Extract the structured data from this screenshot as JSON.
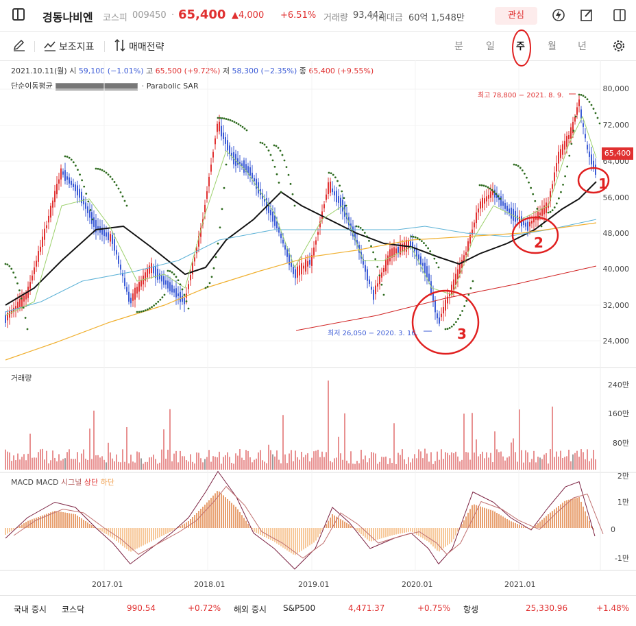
{
  "header": {
    "name": "경동나비엔",
    "market": "코스피",
    "code": "009450",
    "dot": "·",
    "price": "65,400",
    "change": "▲4,000",
    "change_pct": "+6.51%",
    "volume_label": "거래량",
    "volume": "93,442",
    "amount_label": "거래대금",
    "amount": "60억 1,548만",
    "fav_label": "관심"
  },
  "toolbar": {
    "indicator_label": "보조지표",
    "strategy_label": "매매전략",
    "periods": [
      "분",
      "일",
      "주",
      "월",
      "년"
    ],
    "selected_period": "주"
  },
  "info": {
    "date": "2021.10.11(월)",
    "open_label": "시",
    "open": "59,100 (−1.01%)",
    "high_label": "고",
    "high": "65,500 (+9.72%)",
    "low_label": "저",
    "low": "58,300 (−2.35%)",
    "close_label": "종",
    "close": "65,400 (+9.55%)",
    "ma_label": "단순이동평균",
    "sar_label": "· Parabolic SAR"
  },
  "price_axis": [
    "80,000",
    "72,000",
    "64,000",
    "56,000",
    "48,000",
    "40,000",
    "32,000",
    "24,000"
  ],
  "current_price_tag": "65,400",
  "annotations": {
    "high": "최고 78,800 − 2021. 8. 9.",
    "low": "최저 26,050 − 2020. 3. 16.",
    "marks": [
      "1",
      "2",
      "3"
    ]
  },
  "volume_pane": {
    "label": "거래량",
    "axis": [
      "240만",
      "160만",
      "80만"
    ]
  },
  "macd_pane": {
    "label_parts": [
      "MACD MACD",
      "시그널",
      "상단",
      "하단"
    ],
    "axis": [
      "2만",
      "1만",
      "0",
      "-1만"
    ]
  },
  "x_axis": [
    "2017.01",
    "2018.01",
    "2019.01",
    "2020.01",
    "2021.01"
  ],
  "footer": {
    "domestic_label": "국내 증시",
    "kosdaq_label": "코스닥",
    "kosdaq_value": "990.54",
    "kosdaq_change": "+0.72%",
    "overseas_label": "해외 증시",
    "sp_label": "S&P500",
    "sp_value": "4,471.37",
    "sp_change": "+0.75%",
    "hs_label": "항셍",
    "hs_value": "25,330.96",
    "hs_change": "+1.48%"
  },
  "colors": {
    "up": "#e03030",
    "down": "#3b5bd6",
    "ma_long": "#111111",
    "sar": "#2e6b1f",
    "volume": "#e89090",
    "macd_pos": "#f2a25a"
  }
}
